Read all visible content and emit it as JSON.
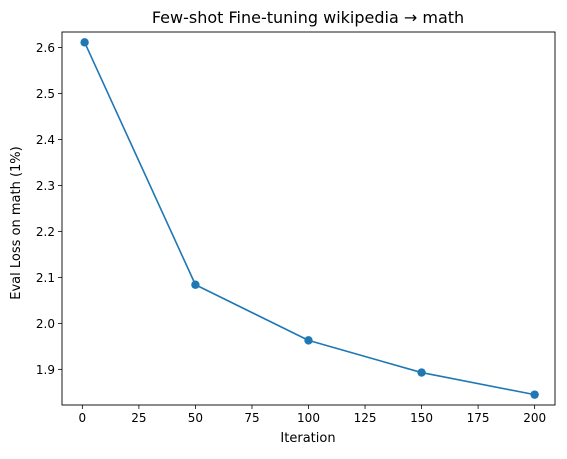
{
  "chart_data": {
    "type": "line",
    "title": "Few-shot Fine-tuning wikipedia → math",
    "xlabel": "Iteration",
    "ylabel": "Eval Loss on math (1%)",
    "xlim": [
      -9,
      209
    ],
    "ylim": [
      1.8225,
      2.6335
    ],
    "xticks": [
      0,
      25,
      50,
      75,
      100,
      125,
      150,
      175,
      200
    ],
    "yticks": [
      1.9,
      2.0,
      2.1,
      2.2,
      2.3,
      2.4,
      2.5,
      2.6
    ],
    "xtick_labels": [
      "0",
      "25",
      "50",
      "75",
      "100",
      "125",
      "150",
      "175",
      "200"
    ],
    "ytick_labels": [
      "1.9",
      "2.0",
      "2.1",
      "2.2",
      "2.3",
      "2.4",
      "2.5",
      "2.6"
    ],
    "grid": false,
    "series": [
      {
        "color": "#1f77b4",
        "marker": "circle",
        "x": [
          1,
          50,
          100,
          150,
          200
        ],
        "y": [
          2.611,
          2.084,
          1.963,
          1.893,
          1.845
        ]
      }
    ]
  }
}
